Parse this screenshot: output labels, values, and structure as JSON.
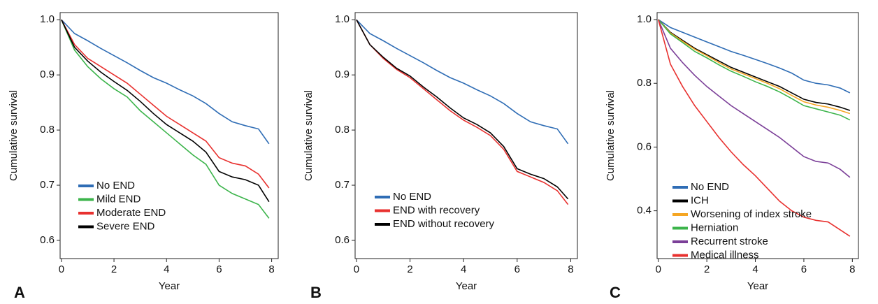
{
  "chart_data": [
    {
      "type": "line",
      "label": "A",
      "xlabel": "Year",
      "ylabel": "Cumulative survival",
      "legend": "lower left",
      "grid": false,
      "xlim": [
        -0.05,
        8.25
      ],
      "xticks": [
        0,
        2,
        4,
        6,
        8
      ],
      "ylim": [
        0.567,
        1.013
      ],
      "yticks": [
        {
          "value": 0.6,
          "label": "0.6"
        },
        {
          "value": 0.7,
          "label": "0.7"
        },
        {
          "value": 0.8,
          "label": "0.8"
        },
        {
          "value": 0.9,
          "label": "0.9"
        },
        {
          "value": 1.0,
          "label": "1.0"
        }
      ],
      "x": [
        0,
        0.5,
        1,
        1.5,
        2,
        2.5,
        3,
        3.5,
        4,
        4.5,
        5,
        5.5,
        6,
        6.5,
        7,
        7.5,
        7.9
      ],
      "series": [
        {
          "name": "No END",
          "color": "#2f6db5",
          "values": [
            1.0,
            0.975,
            0.962,
            0.948,
            0.935,
            0.922,
            0.908,
            0.895,
            0.885,
            0.873,
            0.862,
            0.848,
            0.83,
            0.815,
            0.808,
            0.802,
            0.775
          ]
        },
        {
          "name": "Mild END",
          "color": "#3cb44b",
          "values": [
            1.0,
            0.945,
            0.915,
            0.893,
            0.875,
            0.86,
            0.835,
            0.815,
            0.795,
            0.775,
            0.755,
            0.738,
            0.7,
            0.685,
            0.675,
            0.665,
            0.64
          ]
        },
        {
          "name": "Moderate END",
          "color": "#e8312f",
          "values": [
            1.0,
            0.955,
            0.93,
            0.915,
            0.9,
            0.885,
            0.865,
            0.845,
            0.825,
            0.81,
            0.795,
            0.78,
            0.75,
            0.74,
            0.735,
            0.72,
            0.695
          ]
        },
        {
          "name": "Severe END",
          "color": "#000000",
          "values": [
            1.0,
            0.95,
            0.925,
            0.905,
            0.888,
            0.872,
            0.852,
            0.83,
            0.81,
            0.795,
            0.78,
            0.76,
            0.725,
            0.715,
            0.71,
            0.7,
            0.67
          ]
        }
      ]
    },
    {
      "type": "line",
      "label": "B",
      "xlabel": "Year",
      "ylabel": "Cumulative survival",
      "legend": "lower left",
      "grid": false,
      "xlim": [
        -0.05,
        8.25
      ],
      "xticks": [
        0,
        2,
        4,
        6,
        8
      ],
      "ylim": [
        0.567,
        1.013
      ],
      "yticks": [
        {
          "value": 0.6,
          "label": "0.6"
        },
        {
          "value": 0.7,
          "label": "0.7"
        },
        {
          "value": 0.8,
          "label": "0.8"
        },
        {
          "value": 0.9,
          "label": "0.9"
        },
        {
          "value": 1.0,
          "label": "1.0"
        }
      ],
      "x": [
        0,
        0.5,
        1,
        1.5,
        2,
        2.5,
        3,
        3.5,
        4,
        4.5,
        5,
        5.5,
        6,
        6.5,
        7,
        7.5,
        7.9
      ],
      "series": [
        {
          "name": "No END",
          "color": "#2f6db5",
          "values": [
            1.0,
            0.975,
            0.962,
            0.948,
            0.935,
            0.922,
            0.908,
            0.895,
            0.885,
            0.873,
            0.862,
            0.848,
            0.83,
            0.815,
            0.808,
            0.802,
            0.775
          ]
        },
        {
          "name": "END with recovery",
          "color": "#e8312f",
          "values": [
            1.0,
            0.955,
            0.93,
            0.91,
            0.895,
            0.875,
            0.855,
            0.835,
            0.818,
            0.805,
            0.79,
            0.765,
            0.725,
            0.715,
            0.705,
            0.69,
            0.665
          ]
        },
        {
          "name": "END without recovery",
          "color": "#000000",
          "values": [
            1.0,
            0.955,
            0.932,
            0.912,
            0.898,
            0.878,
            0.86,
            0.84,
            0.822,
            0.81,
            0.795,
            0.77,
            0.73,
            0.72,
            0.712,
            0.697,
            0.675
          ]
        }
      ]
    },
    {
      "type": "line",
      "label": "C",
      "xlabel": "Year",
      "ylabel": "Cumulative survival",
      "legend": "lower left",
      "grid": false,
      "xlim": [
        -0.05,
        8.25
      ],
      "xticks": [
        0,
        2,
        4,
        6,
        8
      ],
      "ylim": [
        0.25,
        1.022
      ],
      "yticks": [
        {
          "value": 0.4,
          "label": "0.4"
        },
        {
          "value": 0.6,
          "label": "0.6"
        },
        {
          "value": 0.8,
          "label": "0.8"
        },
        {
          "value": 1.0,
          "label": "1.0"
        }
      ],
      "x": [
        0,
        0.5,
        1,
        1.5,
        2,
        2.5,
        3,
        3.5,
        4,
        4.5,
        5,
        5.5,
        6,
        6.5,
        7,
        7.5,
        7.9
      ],
      "series": [
        {
          "name": "No END",
          "color": "#2f6db5",
          "values": [
            1.0,
            0.975,
            0.96,
            0.945,
            0.93,
            0.915,
            0.9,
            0.888,
            0.875,
            0.862,
            0.848,
            0.832,
            0.81,
            0.8,
            0.795,
            0.785,
            0.77
          ]
        },
        {
          "name": "ICH",
          "color": "#000000",
          "values": [
            1.0,
            0.96,
            0.935,
            0.91,
            0.89,
            0.87,
            0.85,
            0.835,
            0.82,
            0.805,
            0.79,
            0.77,
            0.75,
            0.74,
            0.735,
            0.725,
            0.715
          ]
        },
        {
          "name": "Worsening of index stroke",
          "color": "#f5a623",
          "values": [
            1.0,
            0.958,
            0.932,
            0.907,
            0.887,
            0.865,
            0.845,
            0.83,
            0.815,
            0.8,
            0.783,
            0.762,
            0.742,
            0.732,
            0.725,
            0.715,
            0.705
          ]
        },
        {
          "name": "Herniation",
          "color": "#3cb44b",
          "values": [
            1.0,
            0.955,
            0.928,
            0.9,
            0.88,
            0.858,
            0.838,
            0.822,
            0.805,
            0.79,
            0.773,
            0.752,
            0.73,
            0.72,
            0.71,
            0.7,
            0.685
          ]
        },
        {
          "name": "Recurrent stroke",
          "color": "#7b3f98",
          "values": [
            1.0,
            0.91,
            0.865,
            0.825,
            0.79,
            0.76,
            0.73,
            0.705,
            0.68,
            0.655,
            0.63,
            0.6,
            0.57,
            0.555,
            0.55,
            0.53,
            0.505
          ]
        },
        {
          "name": "Medical illness",
          "color": "#e8312f",
          "values": [
            1.0,
            0.86,
            0.79,
            0.73,
            0.68,
            0.63,
            0.585,
            0.545,
            0.51,
            0.47,
            0.43,
            0.4,
            0.38,
            0.37,
            0.365,
            0.34,
            0.32
          ]
        }
      ]
    }
  ]
}
